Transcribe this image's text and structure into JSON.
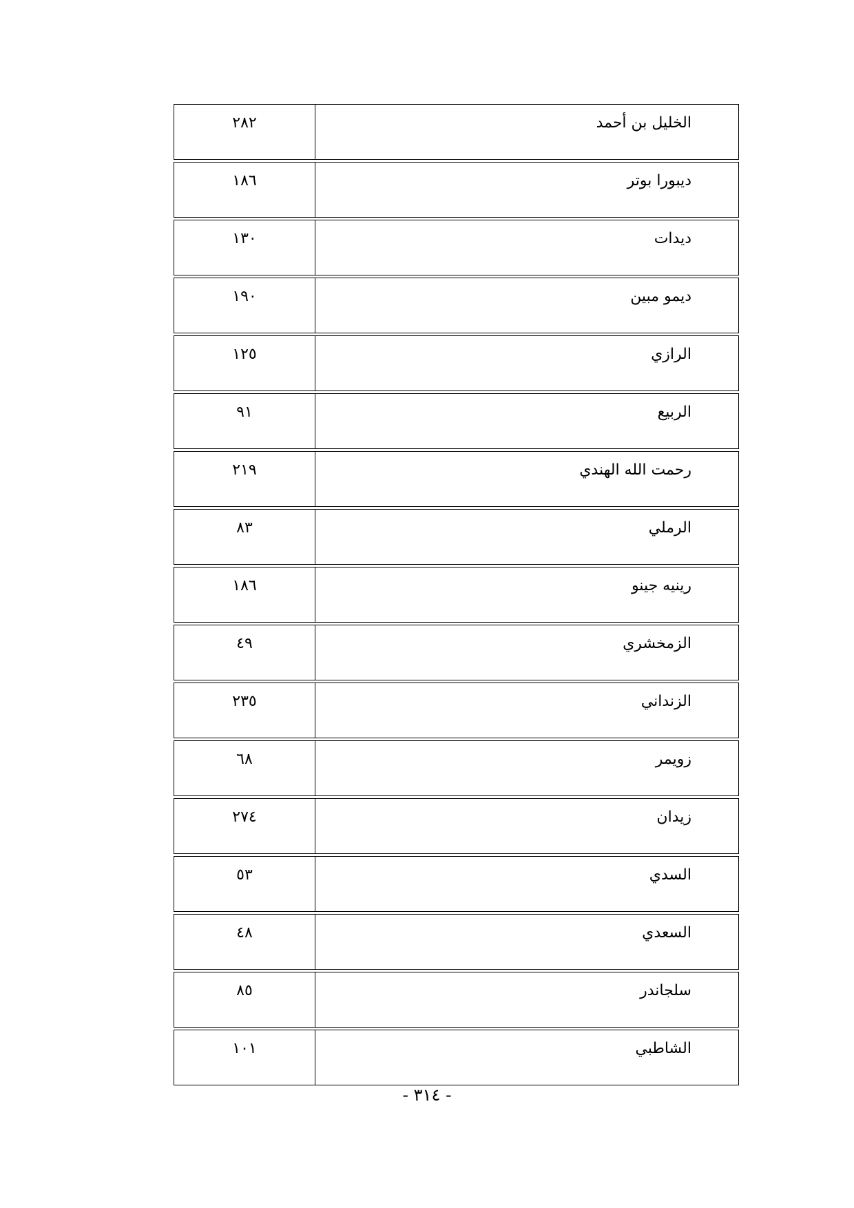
{
  "rows": [
    {
      "name": "الخليل بن أحمد",
      "page": "٢٨٢"
    },
    {
      "name": "ديبورا بوتر",
      "page": "١٨٦"
    },
    {
      "name": "ديدات",
      "page": "١٣٠"
    },
    {
      "name": "ديمو مبين",
      "page": "١٩٠"
    },
    {
      "name": "الرازي",
      "page": "١٢٥"
    },
    {
      "name": "الربيع",
      "page": "٩١"
    },
    {
      "name": "رحمت الله الهندي",
      "page": "٢١٩"
    },
    {
      "name": "الرملي",
      "page": "٨٣"
    },
    {
      "name": "رينيه جينو",
      "page": "١٨٦"
    },
    {
      "name": "الزمخشري",
      "page": "٤٩"
    },
    {
      "name": "الزنداني",
      "page": "٢٣٥"
    },
    {
      "name": "زويمر",
      "page": "٦٨"
    },
    {
      "name": "زيدان",
      "page": "٢٧٤"
    },
    {
      "name": "السدي",
      "page": "٥٣"
    },
    {
      "name": "السعدي",
      "page": "٤٨"
    },
    {
      "name": "سلجاندر",
      "page": "٨٥"
    },
    {
      "name": "الشاطبي",
      "page": "١٠١"
    }
  ],
  "page_number": "- ٣١٤ -"
}
